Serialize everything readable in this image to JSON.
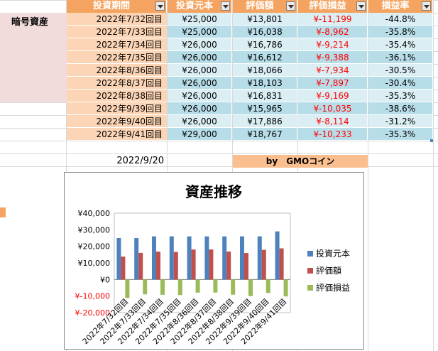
{
  "sheet": {
    "headers": [
      "投資期間",
      "投資元本",
      "評価額",
      "評価損益",
      "損益率"
    ],
    "row_label": "暗号資産",
    "rows": [
      {
        "period": "2022年7/32回目",
        "principal": "¥25,000",
        "value": "¥13,801",
        "gain": "¥-11,199",
        "rate": "-44.8%"
      },
      {
        "period": "2022年7/33回目",
        "principal": "¥25,000",
        "value": "¥16,038",
        "gain": "¥-8,962",
        "rate": "-35.8%"
      },
      {
        "period": "2022年7/34回目",
        "principal": "¥26,000",
        "value": "¥16,786",
        "gain": "¥-9,214",
        "rate": "-35.4%"
      },
      {
        "period": "2022年7/35回目",
        "principal": "¥26,000",
        "value": "¥16,612",
        "gain": "¥-9,388",
        "rate": "-36.1%"
      },
      {
        "period": "2022年8/36回目",
        "principal": "¥26,000",
        "value": "¥18,066",
        "gain": "¥-7,934",
        "rate": "-30.5%"
      },
      {
        "period": "2022年8/37回目",
        "principal": "¥26,000",
        "value": "¥18,103",
        "gain": "¥-7,897",
        "rate": "-30.4%"
      },
      {
        "period": "2022年8/38回目",
        "principal": "¥26,000",
        "value": "¥16,831",
        "gain": "¥-9,169",
        "rate": "-35.3%"
      },
      {
        "period": "2022年9/39回目",
        "principal": "¥26,000",
        "value": "¥15,965",
        "gain": "¥-10,035",
        "rate": "-38.6%"
      },
      {
        "period": "2022年9/40回目",
        "principal": "¥26,000",
        "value": "¥17,886",
        "gain": "¥-8,114",
        "rate": "-31.2%"
      },
      {
        "period": "2022年9/41回目",
        "principal": "¥29,000",
        "value": "¥18,767",
        "gain": "¥-10,233",
        "rate": "-35.3%"
      }
    ],
    "date": "2022/9/20",
    "credit": "by　GMOコイン",
    "colors": {
      "header": "#f4a460",
      "period": "#fbd5b5",
      "num": "#daeef3",
      "label": "#f2dcdb",
      "credit": "#fbbf8f"
    }
  },
  "chart_data": {
    "type": "bar",
    "title": "資産推移",
    "categories": [
      "2022年7/32回目",
      "2022年7/33回目",
      "2022年7/34回目",
      "2022年7/35回目",
      "2022年8/36回目",
      "2022年8/37回目",
      "2022年8/38回目",
      "2022年9/39回目",
      "2022年9/40回目",
      "2022年9/41回目"
    ],
    "series": [
      {
        "name": "投資元本",
        "color": "#4f81bd",
        "values": [
          25000,
          25000,
          26000,
          26000,
          26000,
          26000,
          26000,
          26000,
          26000,
          29000
        ]
      },
      {
        "name": "評価額",
        "color": "#c0504d",
        "values": [
          13801,
          16038,
          16786,
          16612,
          18066,
          18103,
          16831,
          15965,
          17886,
          18767
        ]
      },
      {
        "name": "評価損益",
        "color": "#9bbb59",
        "values": [
          -11199,
          -8962,
          -9214,
          -9388,
          -7934,
          -7897,
          -9169,
          -10035,
          -8114,
          -10233
        ]
      }
    ],
    "ylim": [
      -20000,
      40000
    ],
    "yticks": [
      -20000,
      -10000,
      0,
      10000,
      20000,
      30000,
      40000
    ],
    "ytick_labels": [
      "¥-20,000",
      "¥-10,000",
      "¥0",
      "¥10,000",
      "¥20,000",
      "¥30,000",
      "¥40,000"
    ],
    "legend": "right",
    "grid": false
  }
}
